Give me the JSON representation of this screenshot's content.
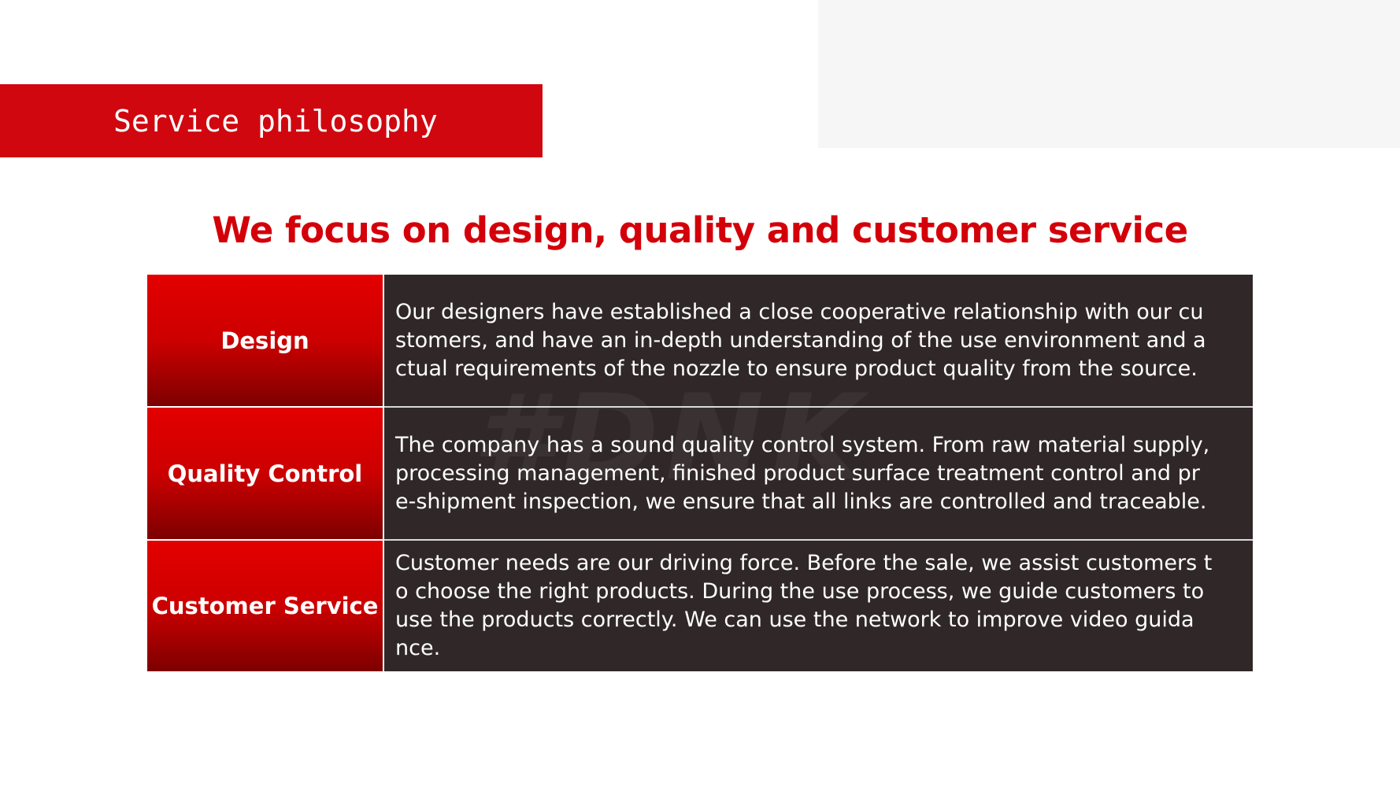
{
  "banner": {
    "title": "Service philosophy"
  },
  "headline": "We focus on design, quality and customer service",
  "watermark": "#DNK",
  "colors": {
    "accent": "#d0070f",
    "panel": "#302828",
    "headline": "#d30009"
  },
  "rows": [
    {
      "label": "Design",
      "lines": [
        "Our designers have established a close cooperative relationship with our cu",
        "stomers, and have an in-depth understanding of the use environment and a",
        "ctual requirements of the nozzle to ensure product quality from the source."
      ]
    },
    {
      "label": "Quality Control",
      "lines": [
        "The company has a sound quality control system. From raw material supply,",
        "processing management, finished product surface treatment control and pr",
        "e-shipment inspection, we ensure that all links are controlled and traceable."
      ]
    },
    {
      "label": "Customer Service",
      "lines": [
        "Customer needs are our driving force. Before the sale, we assist customers t",
        "o choose the right products. During the use process, we guide customers to",
        "use the products correctly. We can use the network to improve video guida",
        "nce."
      ]
    }
  ]
}
